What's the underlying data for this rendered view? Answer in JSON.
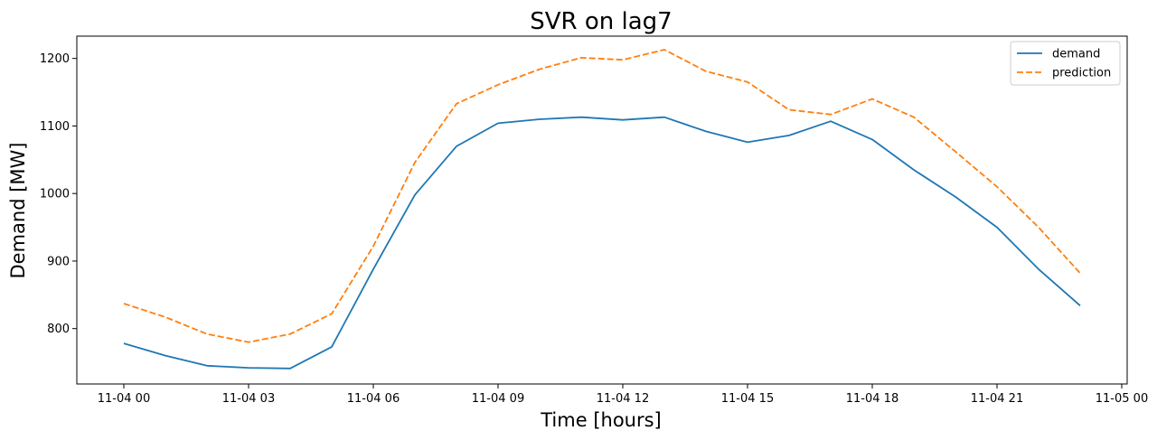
{
  "chart_data": {
    "type": "line",
    "title": "SVR on lag7",
    "xlabel": "Time [hours]",
    "ylabel": "Demand [MW]",
    "x": [
      "11-04 00",
      "11-04 01",
      "11-04 02",
      "11-04 03",
      "11-04 04",
      "11-04 05",
      "11-04 06",
      "11-04 07",
      "11-04 08",
      "11-04 09",
      "11-04 10",
      "11-04 11",
      "11-04 12",
      "11-04 13",
      "11-04 14",
      "11-04 15",
      "11-04 16",
      "11-04 17",
      "11-04 18",
      "11-04 19",
      "11-04 20",
      "11-04 21",
      "11-04 22",
      "11-04 23"
    ],
    "x_ticks": [
      "11-04 00",
      "11-04 03",
      "11-04 06",
      "11-04 09",
      "11-04 12",
      "11-04 15",
      "11-04 18",
      "11-04 21",
      "11-05 00"
    ],
    "y_ticks": [
      800,
      900,
      1000,
      1100,
      1200
    ],
    "ylim": [
      718,
      1233
    ],
    "series": [
      {
        "name": "demand",
        "color": "#1f77b4",
        "dash": "solid",
        "values": [
          778,
          760,
          745,
          742,
          741,
          773,
          888,
          998,
          1070,
          1104,
          1110,
          1113,
          1109,
          1113,
          1092,
          1076,
          1086,
          1107,
          1080,
          1035,
          995,
          950,
          888,
          834
        ]
      },
      {
        "name": "prediction",
        "color": "#ff7f0e",
        "dash": "dashed",
        "values": [
          837,
          817,
          792,
          780,
          792,
          822,
          922,
          1046,
          1133,
          1161,
          1184,
          1201,
          1198,
          1213,
          1181,
          1165,
          1124,
          1117,
          1140,
          1113,
          1062,
          1010,
          950,
          882
        ]
      }
    ],
    "legend_position": "top-right",
    "grid": false
  }
}
